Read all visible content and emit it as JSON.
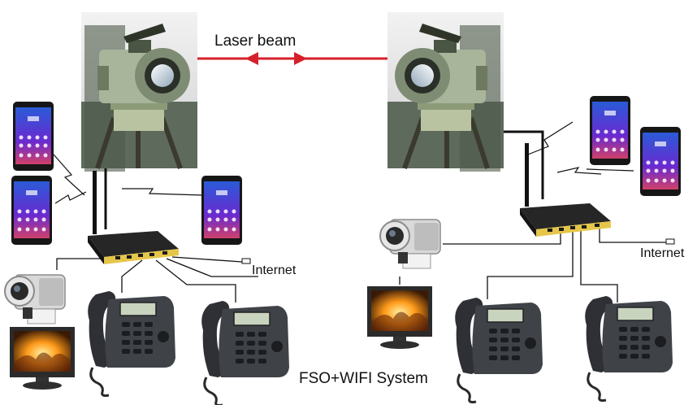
{
  "labels": {
    "laser_beam": "Laser beam",
    "internet_left": "Internet",
    "internet_right": "Internet",
    "system_title": "FSO+WIFI System"
  },
  "colors": {
    "laser": "#d6202a",
    "cable": "#111111",
    "router_body": "#1c1c1c",
    "router_front": "#e8c94a",
    "phone_body": "#1a1a1a",
    "desk_phone": "#3a3d42",
    "camera_body": "#d8d8d8"
  },
  "icons": {
    "fso_terminal": "fso-laser-terminal-icon",
    "router": "wifi-router-icon",
    "smartphone": "smartphone-icon",
    "ip_phone": "ip-phone-icon",
    "camera": "video-camera-icon",
    "monitor": "monitor-icon"
  }
}
